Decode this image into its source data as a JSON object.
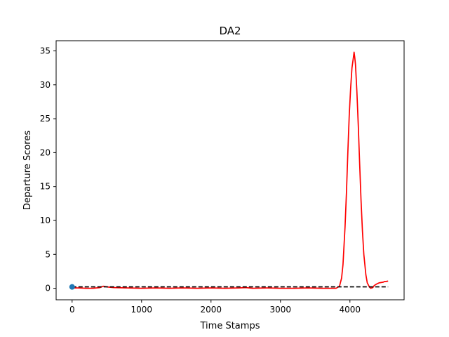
{
  "chart_data": {
    "type": "line",
    "title": "DA2",
    "xlabel": "Time Stamps",
    "ylabel": "Departure Scores",
    "xlim": [
      -230,
      4780
    ],
    "ylim": [
      -1.7,
      36.5
    ],
    "xticks": [
      0,
      1000,
      2000,
      3000,
      4000
    ],
    "yticks": [
      0,
      5,
      10,
      15,
      20,
      25,
      30,
      35
    ],
    "grid": false,
    "series": [
      {
        "color": "#ff0000",
        "style": "solid",
        "x": [
          0,
          100,
          200,
          300,
          400,
          450,
          500,
          600,
          800,
          1000,
          1200,
          1400,
          1600,
          1800,
          2000,
          2200,
          2400,
          2500,
          2600,
          2800,
          3000,
          3200,
          3400,
          3600,
          3700,
          3780,
          3800,
          3850,
          3880,
          3900,
          3930,
          3950,
          3970,
          3990,
          4010,
          4030,
          4050,
          4060,
          4070,
          4080,
          4100,
          4120,
          4140,
          4160,
          4180,
          4200,
          4230,
          4250,
          4280,
          4300,
          4330,
          4350,
          4380,
          4400,
          4420,
          4450,
          4480,
          4500,
          4520,
          4550
        ],
        "y": [
          0.05,
          0.05,
          0.0,
          0.0,
          0.1,
          0.3,
          0.2,
          0.1,
          0.05,
          0.0,
          0.05,
          0.0,
          0.05,
          0.0,
          0.05,
          0.0,
          0.05,
          0.1,
          0.0,
          0.05,
          0.0,
          0.0,
          0.05,
          0.0,
          0.0,
          0.0,
          0.0,
          0.3,
          1.5,
          3.5,
          9.0,
          14.0,
          20.0,
          25.5,
          29.5,
          32.5,
          34.0,
          34.8,
          34.0,
          33.0,
          29.0,
          24.0,
          18.5,
          13.0,
          8.5,
          5.0,
          2.0,
          0.8,
          0.2,
          0.0,
          0.1,
          0.4,
          0.6,
          0.7,
          0.8,
          0.85,
          0.9,
          1.0,
          1.0,
          1.05
        ]
      },
      {
        "color": "#000000",
        "style": "dashed",
        "x": [
          0,
          4550
        ],
        "y": [
          0.2,
          0.2
        ]
      }
    ],
    "markers": [
      {
        "x": 0,
        "y": 0.2,
        "color": "#1f77b4"
      }
    ]
  }
}
